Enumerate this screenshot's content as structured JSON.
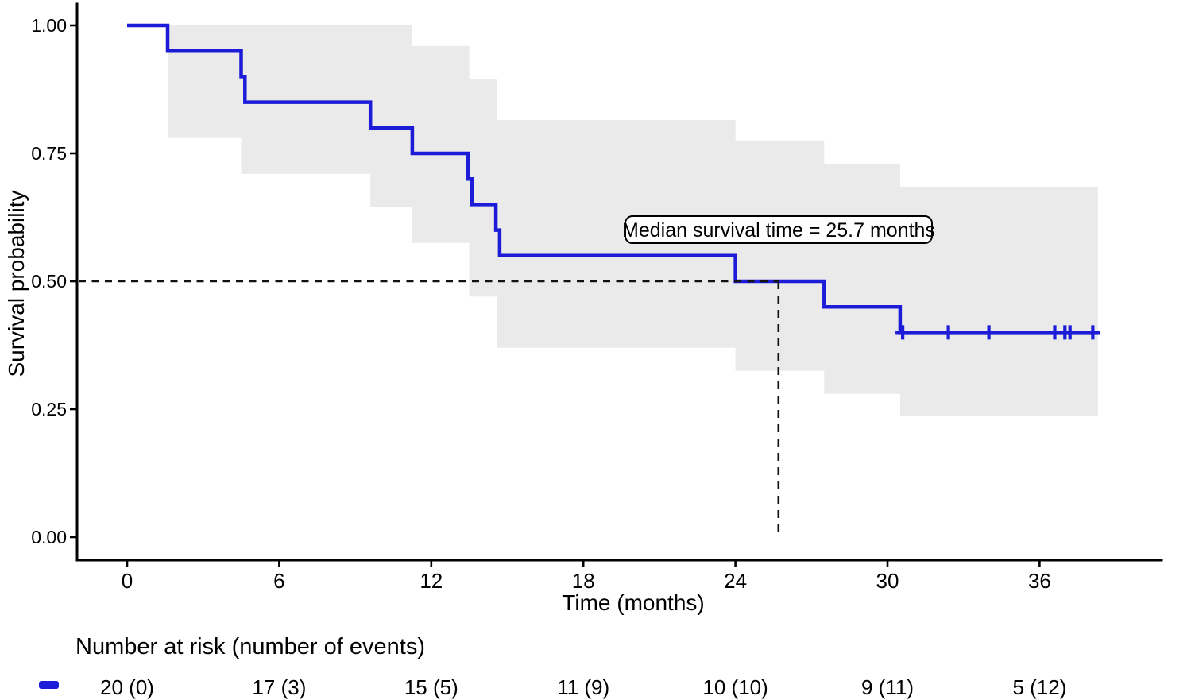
{
  "chart_data": {
    "type": "line",
    "subtype": "kaplan-meier-step",
    "title": "",
    "xlabel": "Time (months)",
    "ylabel": "Survival probability",
    "xlim": [
      0,
      41
    ],
    "ylim": [
      0,
      1.0
    ],
    "grid": false,
    "legend_position": "none",
    "x_ticks": [
      0,
      6,
      12,
      18,
      24,
      30,
      36
    ],
    "x_tick_labels": [
      "0",
      "6",
      "12",
      "18",
      "24",
      "30",
      "36"
    ],
    "y_ticks": [
      0,
      0.25,
      0.5,
      0.75,
      1.0
    ],
    "y_tick_labels": [
      "0.00",
      "0.25",
      "0.50",
      "0.75",
      "1.00"
    ],
    "line_color": "#1B1BD8",
    "ci_band_color": "#EAEAEA",
    "dashed_line_color": "#111111",
    "end_time": 38.3,
    "steps": [
      {
        "t": 0,
        "s": 1.0
      },
      {
        "t": 1.6,
        "s": 0.95
      },
      {
        "t": 4.5,
        "s": 0.9
      },
      {
        "t": 4.65,
        "s": 0.85
      },
      {
        "t": 9.6,
        "s": 0.8
      },
      {
        "t": 11.25,
        "s": 0.75
      },
      {
        "t": 13.45,
        "s": 0.7
      },
      {
        "t": 13.6,
        "s": 0.65
      },
      {
        "t": 14.55,
        "s": 0.6
      },
      {
        "t": 14.7,
        "s": 0.55
      },
      {
        "t": 24.0,
        "s": 0.5
      },
      {
        "t": 27.5,
        "s": 0.45
      },
      {
        "t": 30.5,
        "s": 0.4
      }
    ],
    "censor_times": [
      30.6,
      32.4,
      34.0,
      36.6,
      37.0,
      37.2,
      38.1
    ],
    "censor_value": 0.4,
    "ci_upper": [
      {
        "t": 1.6,
        "s": 1.0
      },
      {
        "t": 11.25,
        "s": 0.96
      },
      {
        "t": 13.5,
        "s": 0.895
      },
      {
        "t": 14.6,
        "s": 0.815
      },
      {
        "t": 24.0,
        "s": 0.775
      },
      {
        "t": 27.5,
        "s": 0.73
      },
      {
        "t": 30.5,
        "s": 0.685
      }
    ],
    "ci_lower": [
      {
        "t": 1.6,
        "s": 0.78
      },
      {
        "t": 4.5,
        "s": 0.71
      },
      {
        "t": 9.6,
        "s": 0.645
      },
      {
        "t": 11.25,
        "s": 0.575
      },
      {
        "t": 13.5,
        "s": 0.47
      },
      {
        "t": 14.6,
        "s": 0.37
      },
      {
        "t": 24.0,
        "s": 0.325
      },
      {
        "t": 27.5,
        "s": 0.28
      },
      {
        "t": 30.5,
        "s": 0.237
      }
    ],
    "median": {
      "time": 25.7,
      "survival": 0.5,
      "label": "Median survival time = 25.7 months"
    },
    "risk_table": {
      "title": "Number at risk (number of events)",
      "times": [
        0,
        6,
        12,
        18,
        24,
        30,
        36
      ],
      "labels": [
        "20 (0)",
        "17 (3)",
        "15 (5)",
        "11 (9)",
        "10 (10)",
        "9 (11)",
        "5 (12)"
      ]
    }
  }
}
